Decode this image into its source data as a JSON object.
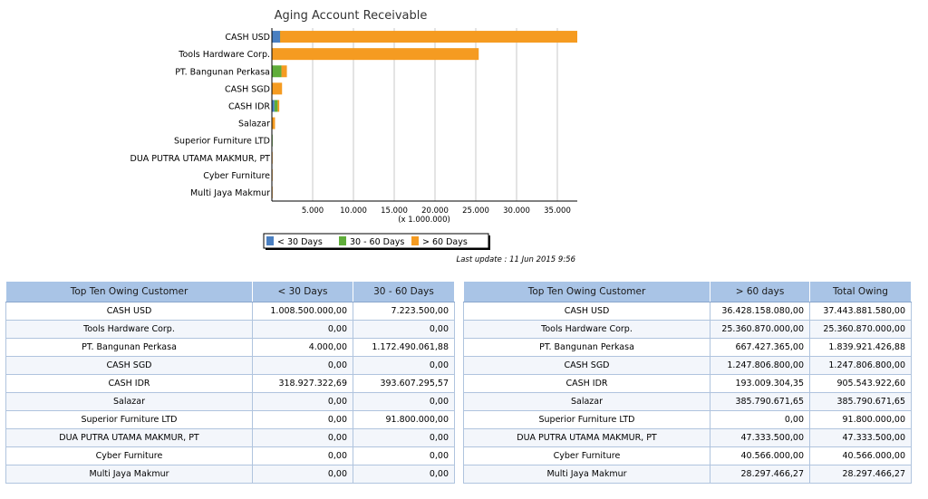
{
  "chart_data": {
    "type": "bar",
    "orientation": "horizontal",
    "stacked": true,
    "title": "Aging Account Receivable",
    "categories": [
      "CASH USD",
      "Tools Hardware Corp.",
      "PT. Bangunan Perkasa",
      "CASH SGD",
      "CASH IDR",
      "Salazar",
      "Superior Furniture LTD",
      "DUA PUTRA UTAMA MAKMUR, PT",
      "Cyber Furniture",
      "Multi Jaya Makmur"
    ],
    "series": [
      {
        "name": "< 30 Days",
        "color": "#4a7fc1",
        "values": [
          1008500,
          0,
          4,
          0,
          318927,
          0,
          0,
          0,
          0,
          0
        ]
      },
      {
        "name": "30 - 60 Days",
        "color": "#5fad3a",
        "values": [
          7224,
          0,
          1172490,
          0,
          393607,
          0,
          91800,
          0,
          0,
          0
        ]
      },
      {
        "name": "> 60 Days",
        "color": "#f59b21",
        "values": [
          36428158,
          25360870,
          667427,
          1247807,
          193009,
          385791,
          0,
          47334,
          40566,
          28297
        ]
      }
    ],
    "xticks": [
      "5.000",
      "10.000",
      "15.000",
      "20.000",
      "25.000",
      "30.000",
      "35.000"
    ],
    "xtick_values": [
      5000000,
      10000000,
      15000000,
      20000000,
      25000000,
      30000000,
      35000000
    ],
    "xlim": [
      0,
      37443882
    ],
    "xunit_label": "(x 1.000.000)",
    "grid": true,
    "legend_position": "bottom"
  },
  "last_update": "Last update : 11 Jun 2015 9:56",
  "table1": {
    "headers": [
      "Top Ten Owing Customer",
      "< 30 Days",
      "30 - 60 Days"
    ],
    "rows": [
      [
        "CASH USD",
        "1.008.500.000,00",
        "7.223.500,00"
      ],
      [
        "Tools Hardware Corp.",
        "0,00",
        "0,00"
      ],
      [
        "PT. Bangunan Perkasa",
        "4.000,00",
        "1.172.490.061,88"
      ],
      [
        "CASH SGD",
        "0,00",
        "0,00"
      ],
      [
        "CASH IDR",
        "318.927.322,69",
        "393.607.295,57"
      ],
      [
        "Salazar",
        "0,00",
        "0,00"
      ],
      [
        "Superior Furniture LTD",
        "0,00",
        "91.800.000,00"
      ],
      [
        "DUA PUTRA UTAMA MAKMUR, PT",
        "0,00",
        "0,00"
      ],
      [
        "Cyber Furniture",
        "0,00",
        "0,00"
      ],
      [
        "Multi Jaya Makmur",
        "0,00",
        "0,00"
      ]
    ]
  },
  "table2": {
    "headers": [
      "Top Ten Owing Customer",
      "> 60 days",
      "Total Owing"
    ],
    "rows": [
      [
        "CASH USD",
        "36.428.158.080,00",
        "37.443.881.580,00"
      ],
      [
        "Tools Hardware Corp.",
        "25.360.870.000,00",
        "25.360.870.000,00"
      ],
      [
        "PT. Bangunan Perkasa",
        "667.427.365,00",
        "1.839.921.426,88"
      ],
      [
        "CASH SGD",
        "1.247.806.800,00",
        "1.247.806.800,00"
      ],
      [
        "CASH IDR",
        "193.009.304,35",
        "905.543.922,60"
      ],
      [
        "Salazar",
        "385.790.671,65",
        "385.790.671,65"
      ],
      [
        "Superior Furniture LTD",
        "0,00",
        "91.800.000,00"
      ],
      [
        "DUA PUTRA UTAMA MAKMUR, PT",
        "47.333.500,00",
        "47.333.500,00"
      ],
      [
        "Cyber Furniture",
        "40.566.000,00",
        "40.566.000,00"
      ],
      [
        "Multi Jaya Makmur",
        "28.297.466,27",
        "28.297.466,27"
      ]
    ]
  }
}
